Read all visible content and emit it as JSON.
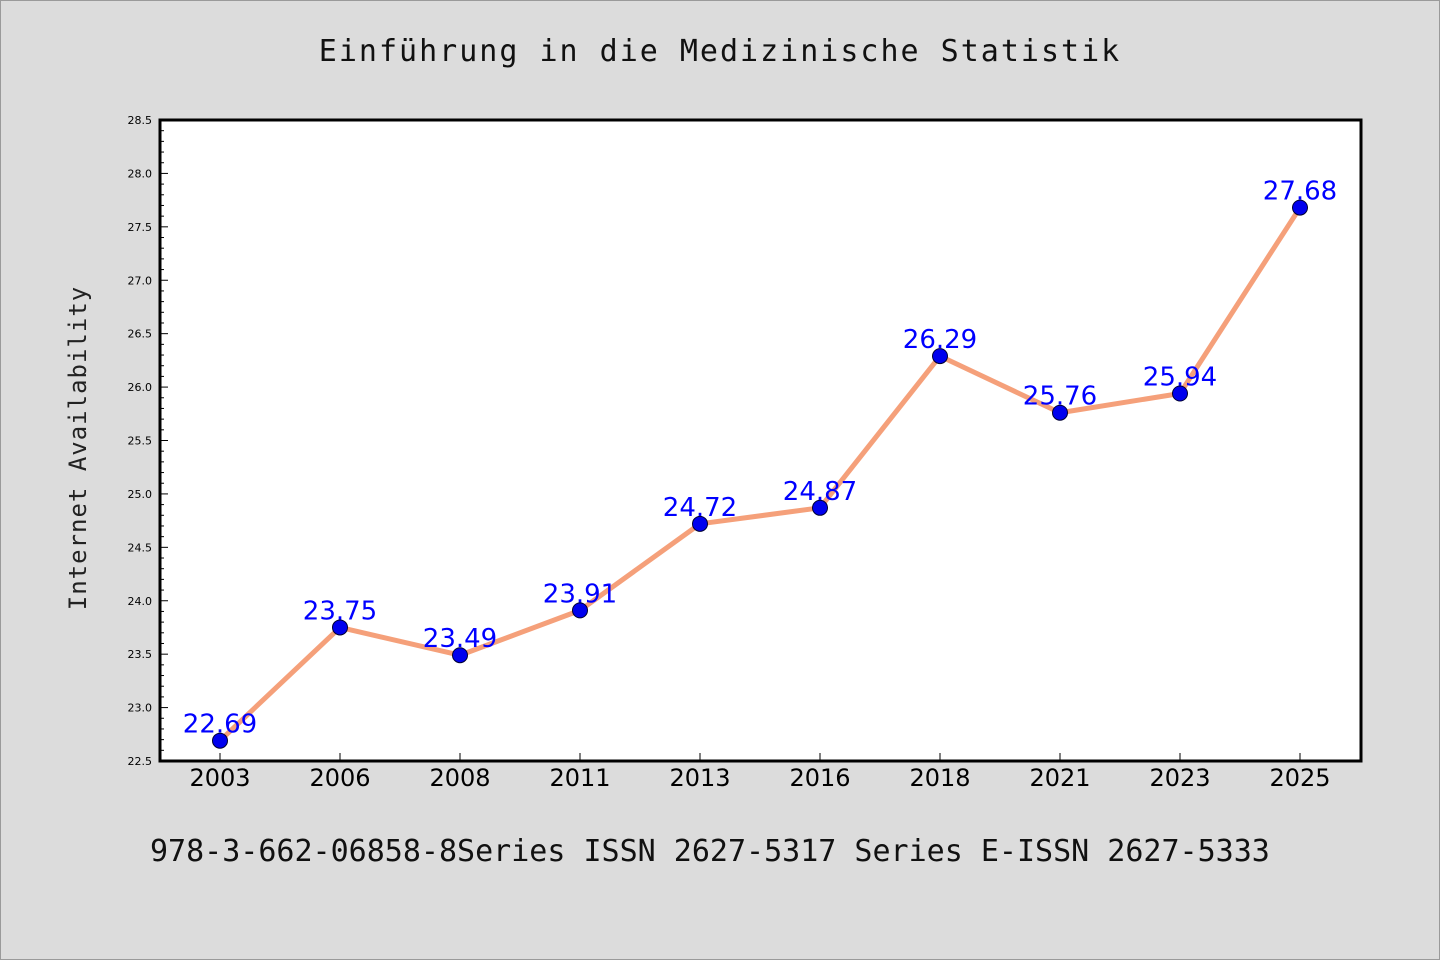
{
  "chart_data": {
    "type": "line",
    "title": "Einführung in die Medizinische Statistik",
    "ylabel": "Internet Availability",
    "xlabel": "",
    "categories": [
      "2003",
      "2006",
      "2008",
      "2011",
      "2013",
      "2016",
      "2018",
      "2021",
      "2023",
      "2025"
    ],
    "series": [
      {
        "values": [
          22.69,
          23.75,
          23.49,
          23.91,
          24.72,
          24.87,
          26.29,
          25.76,
          25.94,
          27.68
        ],
        "data_labels": [
          "22.69",
          "23.75",
          "23.49",
          "23.91",
          "24.72",
          "24.87",
          "26.29",
          "25.76",
          "25.94",
          "27.68"
        ],
        "line_color": "#f5a07a",
        "marker_color": "#0000ee",
        "label_color": "#0000ff"
      }
    ],
    "ylim": [
      22.5,
      28.5
    ],
    "yticks": [
      "22.5",
      "23.0",
      "23.5",
      "24.0",
      "24.5",
      "25.0",
      "25.5",
      "26.0",
      "26.5",
      "27.0",
      "27.5",
      "28.0",
      "28.5"
    ],
    "grid": false,
    "legend": "none"
  },
  "footer": "978-3-662-06858-8Series ISSN 2627-5317 Series E-ISSN 2627-5333",
  "colors": {
    "background": "#dcdcdc",
    "plot_background": "#ffffff",
    "axis": "#000000"
  }
}
